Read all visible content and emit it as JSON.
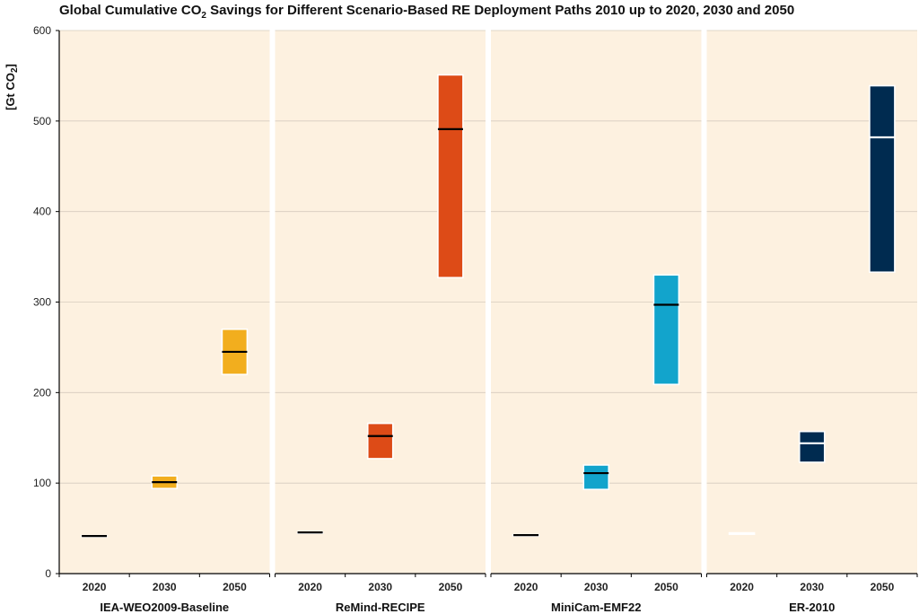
{
  "chart_data": {
    "type": "box",
    "title": "Global Cumulative CO",
    "title_sub": "2",
    "title_rest": " Savings for Different Scenario-Based RE Deployment Paths 2010 up to 2020, 2030 and 2050",
    "ylabel": "[Gt CO",
    "ylabel_sub": "2",
    "ylabel_close": "]",
    "ylim": [
      0,
      600
    ],
    "yticks": [
      "0",
      "100",
      "200",
      "300",
      "400",
      "500",
      "600"
    ],
    "categories": [
      "2020",
      "2030",
      "2050"
    ],
    "grid": true,
    "panels": [
      {
        "name": "IEA-WEO2009-Baseline",
        "color": "#F2AE1E",
        "median_color": "#000000",
        "boxes": [
          {
            "x": "2020",
            "low": 41,
            "high": 42,
            "median": 41.5
          },
          {
            "x": "2030",
            "low": 94,
            "high": 108,
            "median": 101
          },
          {
            "x": "2050",
            "low": 220,
            "high": 270,
            "median": 245
          }
        ]
      },
      {
        "name": "ReMind-RECIPE",
        "color": "#DD4B17",
        "median_color": "#000000",
        "boxes": [
          {
            "x": "2020",
            "low": 45,
            "high": 46,
            "median": 45.5
          },
          {
            "x": "2030",
            "low": 127,
            "high": 166,
            "median": 152
          },
          {
            "x": "2050",
            "low": 327,
            "high": 551,
            "median": 491
          }
        ]
      },
      {
        "name": "MiniCam-EMF22",
        "color": "#12A4CC",
        "median_color": "#000000",
        "boxes": [
          {
            "x": "2020",
            "low": 42,
            "high": 43,
            "median": 42.5
          },
          {
            "x": "2030",
            "low": 93,
            "high": 120,
            "median": 111
          },
          {
            "x": "2050",
            "low": 209,
            "high": 330,
            "median": 297
          }
        ]
      },
      {
        "name": "ER-2010",
        "color": "#002B50",
        "median_color": "#FFFFFF",
        "boxes": [
          {
            "x": "2020",
            "low": 44,
            "high": 45,
            "median": 44.5
          },
          {
            "x": "2030",
            "low": 123,
            "high": 157,
            "median": 144
          },
          {
            "x": "2050",
            "low": 333,
            "high": 539,
            "median": 482
          }
        ]
      }
    ]
  }
}
